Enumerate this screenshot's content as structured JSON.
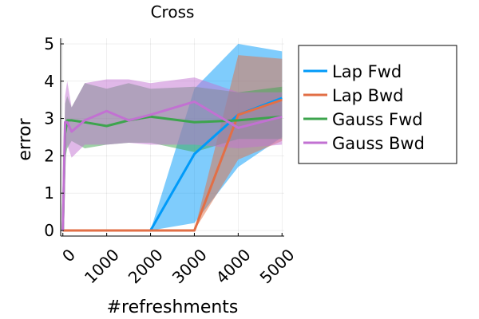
{
  "chart_data": {
    "type": "line",
    "title": "Cross",
    "xlabel": "#refreshments",
    "ylabel": "error",
    "xlim": [
      -50,
      5050
    ],
    "ylim": [
      -0.15,
      5.15
    ],
    "xticks": [
      0,
      1000,
      2000,
      3000,
      4000,
      5000
    ],
    "yticks": [
      0,
      1,
      2,
      3,
      4,
      5
    ],
    "grid": true,
    "legend_position": "outside-right",
    "series": [
      {
        "name": "Lap Fwd",
        "color": "#009af9",
        "x": [
          0,
          100,
          500,
          1000,
          1500,
          2000,
          3000,
          4000,
          5000
        ],
        "y": [
          0,
          0,
          0,
          0,
          0,
          0,
          2.05,
          3.1,
          3.55
        ],
        "lower": [
          0,
          0,
          0,
          0,
          0,
          0,
          0.2,
          1.7,
          2.5
        ],
        "upper": [
          0,
          0,
          0,
          0,
          0,
          0,
          3.8,
          5.0,
          4.8
        ]
      },
      {
        "name": "Lap Bwd",
        "color": "#e26f46",
        "x": [
          0,
          100,
          500,
          1000,
          1500,
          2000,
          3000,
          4000,
          5000
        ],
        "y": [
          0,
          0,
          0,
          0,
          0,
          0,
          0,
          3.1,
          3.5
        ],
        "lower": [
          0,
          0,
          0,
          0,
          0,
          0,
          0,
          1.9,
          2.4
        ],
        "upper": [
          0,
          0,
          0,
          0,
          0,
          0,
          0,
          4.7,
          4.6
        ]
      },
      {
        "name": "Gauss Fwd",
        "color": "#3da44d",
        "x": [
          0,
          50,
          100,
          200,
          500,
          1000,
          1500,
          2000,
          3000,
          4000,
          5000
        ],
        "y": [
          0,
          2.6,
          2.95,
          2.95,
          2.9,
          2.8,
          2.95,
          3.05,
          2.9,
          2.95,
          3.05
        ],
        "lower": [
          0,
          1.9,
          2.2,
          2.4,
          2.2,
          2.3,
          2.35,
          2.35,
          2.1,
          2.45,
          2.45
        ],
        "upper": [
          0,
          3.4,
          3.6,
          3.3,
          3.95,
          3.8,
          3.95,
          3.8,
          3.85,
          3.7,
          3.85
        ]
      },
      {
        "name": "Gauss Bwd",
        "color": "#c271d2",
        "x": [
          0,
          50,
          100,
          200,
          500,
          1000,
          1500,
          2000,
          3000,
          4000,
          5000
        ],
        "y": [
          0,
          2.9,
          2.9,
          2.65,
          2.95,
          3.2,
          2.95,
          3.1,
          3.45,
          2.75,
          3.05
        ],
        "lower": [
          0,
          2.0,
          2.3,
          1.95,
          2.3,
          2.3,
          2.35,
          2.3,
          2.3,
          2.2,
          2.3
        ],
        "upper": [
          0,
          3.6,
          4.0,
          3.3,
          3.95,
          4.05,
          4.05,
          3.95,
          4.1,
          3.7,
          3.7
        ]
      }
    ]
  }
}
